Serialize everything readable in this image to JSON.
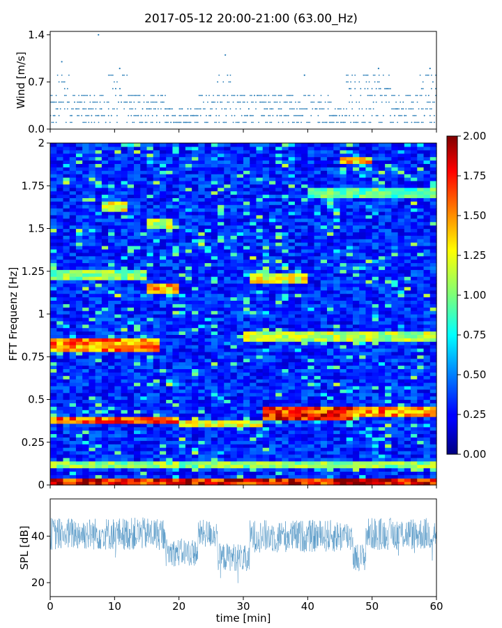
{
  "title": "2017-05-12 20:00-21:00 (63.00_Hz)",
  "chart_data": [
    {
      "id": "wind",
      "type": "scatter",
      "ylabel": "Wind [m/s]",
      "ylim": [
        0,
        1.45
      ],
      "yticks": [
        0.0,
        0.7,
        1.4
      ],
      "ytick_labels": [
        "0.0",
        "0.7",
        "1.4"
      ],
      "xlim": [
        0,
        60
      ],
      "color": "#1f77b4",
      "levels": [
        0.1,
        0.2,
        0.3,
        0.4,
        0.5,
        0.6,
        0.7,
        0.8,
        0.9,
        1.0,
        1.1,
        1.4
      ],
      "peaks": [
        {
          "x": 1.8,
          "y": 1.0
        },
        {
          "x": 7.5,
          "y": 1.4
        },
        {
          "x": 10.8,
          "y": 0.9
        },
        {
          "x": 27.2,
          "y": 1.1
        },
        {
          "x": 39.5,
          "y": 0.8
        },
        {
          "x": 51.0,
          "y": 0.9
        },
        {
          "x": 59.0,
          "y": 0.9
        }
      ]
    },
    {
      "id": "spectrogram",
      "type": "heatmap",
      "ylabel": "FFT Frequenz [Hz]",
      "xlim": [
        0,
        60
      ],
      "ylim": [
        0,
        2
      ],
      "yticks": [
        0,
        0.25,
        0.5,
        0.75,
        1,
        1.25,
        1.5,
        1.75,
        2
      ],
      "ytick_labels": [
        "0",
        "0.25",
        "0.5",
        "0.75",
        "1",
        "1.25",
        "1.5",
        "1.75",
        "2"
      ],
      "colormap": "jet",
      "colorbar": {
        "range": [
          0.0,
          2.0
        ],
        "ticks": [
          0.0,
          0.25,
          0.5,
          0.75,
          1.0,
          1.25,
          1.5,
          1.75,
          2.0
        ],
        "tick_labels": [
          "0.00",
          "0.25",
          "0.50",
          "0.75",
          "1.00",
          "1.25",
          "1.50",
          "1.75",
          "2.00"
        ]
      },
      "bands": [
        {
          "t0": 0,
          "t1": 60,
          "f0": 0.0,
          "f1": 0.04,
          "v": 1.9
        },
        {
          "t0": 0,
          "t1": 60,
          "f0": 0.1,
          "f1": 0.13,
          "v": 1.1
        },
        {
          "t0": 0,
          "t1": 20,
          "f0": 0.36,
          "f1": 0.4,
          "v": 1.7
        },
        {
          "t0": 20,
          "t1": 33,
          "f0": 0.34,
          "f1": 0.38,
          "v": 1.3
        },
        {
          "t0": 33,
          "t1": 47,
          "f0": 0.39,
          "f1": 0.45,
          "v": 1.8
        },
        {
          "t0": 47,
          "t1": 60,
          "f0": 0.4,
          "f1": 0.45,
          "v": 1.6
        },
        {
          "t0": 0,
          "t1": 17,
          "f0": 0.79,
          "f1": 0.85,
          "v": 1.6
        },
        {
          "t0": 30,
          "t1": 60,
          "f0": 0.84,
          "f1": 0.9,
          "v": 1.2
        },
        {
          "t0": 40,
          "t1": 60,
          "f0": 1.68,
          "f1": 1.74,
          "v": 1.0
        },
        {
          "t0": 31,
          "t1": 40,
          "f0": 1.18,
          "f1": 1.24,
          "v": 1.3
        },
        {
          "t0": 0,
          "t1": 15,
          "f0": 1.2,
          "f1": 1.26,
          "v": 1.1
        },
        {
          "t0": 15,
          "t1": 20,
          "f0": 1.13,
          "f1": 1.17,
          "v": 1.5
        },
        {
          "t0": 45,
          "t1": 50,
          "f0": 1.88,
          "f1": 1.92,
          "v": 1.5
        },
        {
          "t0": 8,
          "t1": 12,
          "f0": 1.6,
          "f1": 1.66,
          "v": 1.3
        },
        {
          "t0": 15,
          "t1": 19,
          "f0": 1.5,
          "f1": 1.55,
          "v": 1.2
        }
      ]
    },
    {
      "id": "spl",
      "type": "line",
      "ylabel": "SPL [dB]",
      "xlabel": "time [min]",
      "ylim": [
        14,
        56
      ],
      "yticks": [
        20,
        40
      ],
      "ytick_labels": [
        "20",
        "40"
      ],
      "xlim": [
        0,
        60
      ],
      "xticks": [
        0,
        10,
        20,
        30,
        40,
        50,
        60
      ],
      "xtick_labels": [
        "0",
        "10",
        "20",
        "30",
        "40",
        "50",
        "60"
      ],
      "color": "#1f77b4",
      "segments": [
        {
          "t0": 0,
          "t1": 18,
          "mean": 41,
          "spread": 7
        },
        {
          "t0": 18,
          "t1": 23,
          "mean": 33,
          "spread": 6
        },
        {
          "t0": 23,
          "t1": 26,
          "mean": 41,
          "spread": 6
        },
        {
          "t0": 26,
          "t1": 30,
          "mean": 31,
          "spread": 6
        },
        {
          "t0": 30,
          "t1": 31,
          "mean": 30,
          "spread": 6
        },
        {
          "t0": 31,
          "t1": 47,
          "mean": 40,
          "spread": 7
        },
        {
          "t0": 47,
          "t1": 49,
          "mean": 31,
          "spread": 6
        },
        {
          "t0": 49,
          "t1": 60,
          "mean": 41,
          "spread": 7
        }
      ]
    }
  ]
}
